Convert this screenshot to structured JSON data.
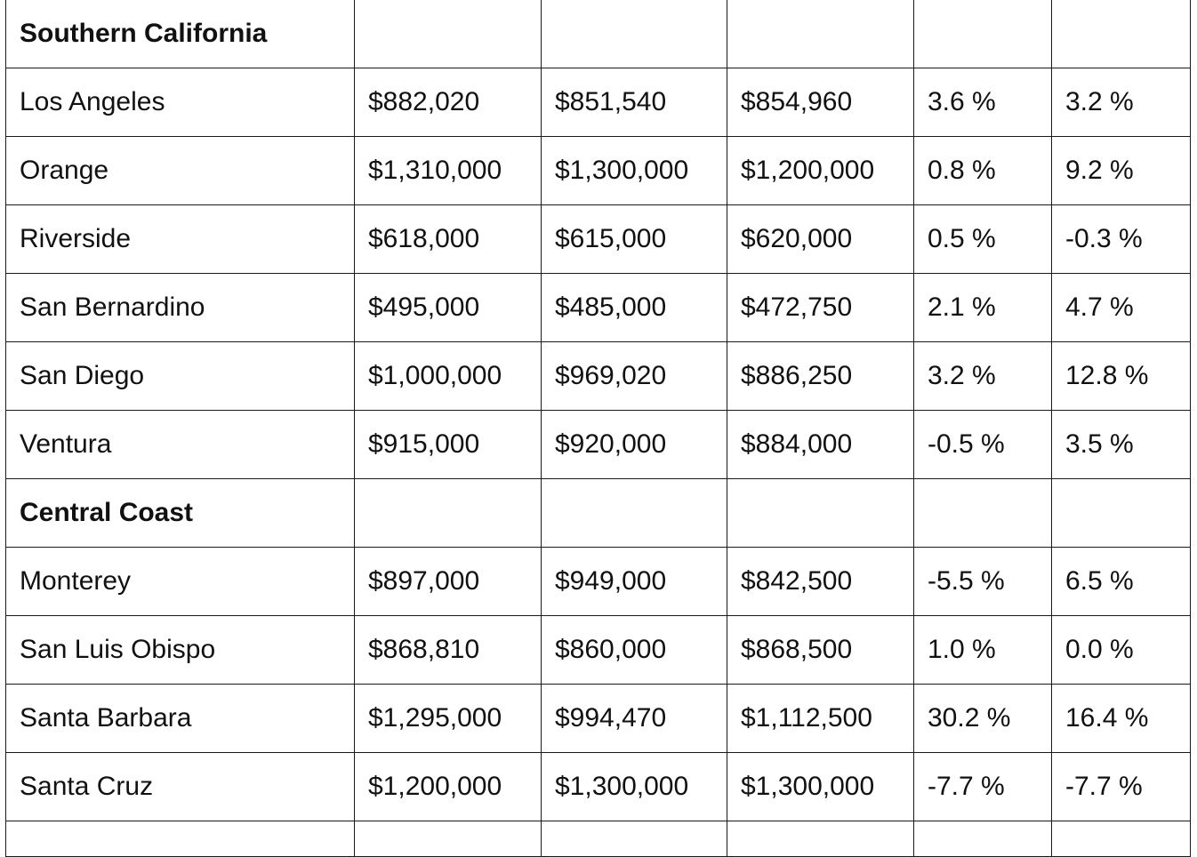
{
  "table": {
    "rows": [
      {
        "type": "section",
        "name": "Southern California",
        "cells": [
          "",
          "",
          "",
          "",
          ""
        ]
      },
      {
        "type": "data",
        "name": "Los Angeles",
        "cells": [
          "$882,020",
          "$851,540",
          "$854,960",
          "3.6 %",
          "3.2 %"
        ]
      },
      {
        "type": "data",
        "name": "Orange",
        "cells": [
          "$1,310,000",
          "$1,300,000",
          "$1,200,000",
          "0.8 %",
          "9.2 %"
        ]
      },
      {
        "type": "data",
        "name": "Riverside",
        "cells": [
          "$618,000",
          "$615,000",
          "$620,000",
          "0.5 %",
          "-0.3 %"
        ]
      },
      {
        "type": "data",
        "name": "San Bernardino",
        "cells": [
          "$495,000",
          "$485,000",
          "$472,750",
          "2.1 %",
          "4.7 %"
        ]
      },
      {
        "type": "data",
        "name": "San Diego",
        "cells": [
          "$1,000,000",
          "$969,020",
          "$886,250",
          "3.2 %",
          "12.8 %"
        ]
      },
      {
        "type": "data",
        "name": "Ventura",
        "cells": [
          "$915,000",
          "$920,000",
          "$884,000",
          "-0.5 %",
          "3.5 %"
        ]
      },
      {
        "type": "section",
        "name": "Central Coast",
        "cells": [
          "",
          "",
          "",
          "",
          ""
        ]
      },
      {
        "type": "data",
        "name": "Monterey",
        "cells": [
          "$897,000",
          "$949,000",
          "$842,500",
          "-5.5 %",
          "6.5 %"
        ]
      },
      {
        "type": "data",
        "name": "San Luis Obispo",
        "cells": [
          "$868,810",
          "$860,000",
          "$868,500",
          "1.0 %",
          "0.0 %"
        ]
      },
      {
        "type": "data",
        "name": "Santa Barbara",
        "cells": [
          "$1,295,000",
          "$994,470",
          "$1,112,500",
          "30.2 %",
          "16.4 %"
        ]
      },
      {
        "type": "data",
        "name": "Santa Cruz",
        "cells": [
          "$1,200,000",
          "$1,300,000",
          "$1,300,000",
          "-7.7 %",
          "-7.7 %"
        ]
      },
      {
        "type": "partial",
        "name": "",
        "cells": [
          "",
          "",
          "",
          "",
          ""
        ]
      }
    ]
  }
}
